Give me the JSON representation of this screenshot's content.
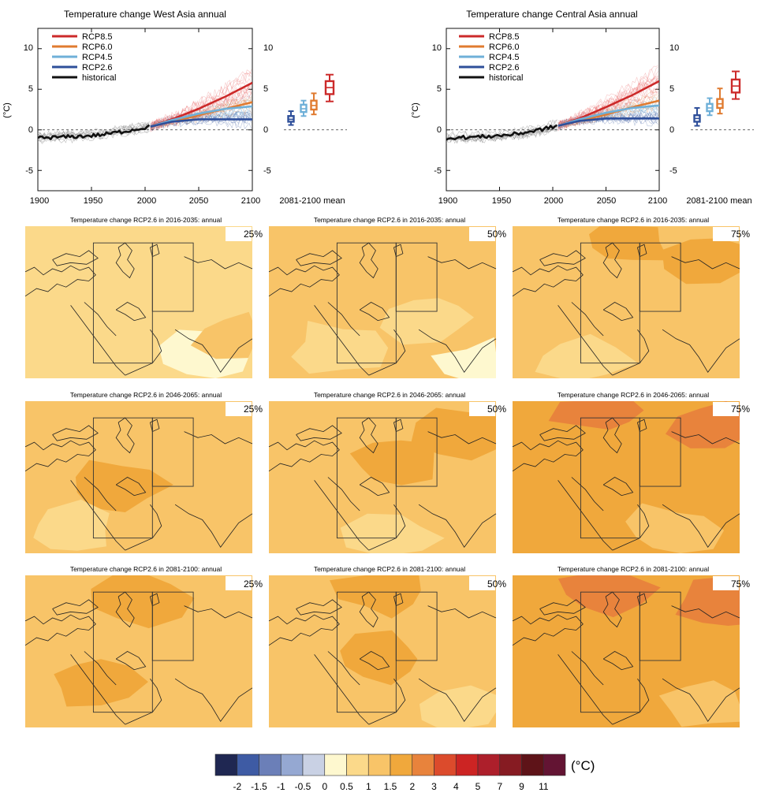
{
  "colors": {
    "rcp85": "#cc2a2a",
    "rcp60": "#e07b30",
    "rcp45": "#6fb0d8",
    "rcp26": "#2e4f9a",
    "historical": "#111111",
    "land": "#fbd98a"
  },
  "timeseries": [
    {
      "title": "Temperature change West Asia annual",
      "ylabel": "(°C)",
      "mean_label": "2081-2100 mean",
      "legend": [
        "RCP8.5",
        "RCP6.0",
        "RCP4.5",
        "RCP2.6",
        "historical"
      ],
      "x_ticks": [
        "1900",
        "1950",
        "2000",
        "2050",
        "2100"
      ],
      "y_ticks_left": [
        "10",
        "5",
        "0",
        "-5"
      ],
      "y_ticks_right": [
        "10",
        "5",
        "0",
        "-5"
      ]
    },
    {
      "title": "Temperature change Central Asia annual",
      "ylabel": "(°C)",
      "mean_label": "2081-2100 mean",
      "legend": [
        "RCP8.5",
        "RCP6.0",
        "RCP4.5",
        "RCP2.6",
        "historical"
      ],
      "x_ticks": [
        "1900",
        "1950",
        "2000",
        "2050",
        "2100"
      ],
      "y_ticks_left": [
        "10",
        "5",
        "0",
        "-5"
      ],
      "y_ticks_right": [
        "10",
        "5",
        "0",
        "-5"
      ]
    }
  ],
  "chart_data": [
    {
      "type": "line",
      "title": "Temperature change West Asia annual",
      "ylabel": "(°C)",
      "xlim": [
        1900,
        2100
      ],
      "ylim": [
        -7.5,
        12.5
      ],
      "series": [
        {
          "name": "historical",
          "x": [
            1900,
            1920,
            1940,
            1960,
            1980,
            2005
          ],
          "y": [
            -1.0,
            -0.9,
            -0.8,
            -0.6,
            -0.2,
            0.4
          ]
        },
        {
          "name": "RCP8.5",
          "x": [
            2005,
            2025,
            2050,
            2075,
            2100
          ],
          "y": [
            0.4,
            1.3,
            2.6,
            4.1,
            5.8
          ]
        },
        {
          "name": "RCP6.0",
          "x": [
            2005,
            2025,
            2050,
            2075,
            2100
          ],
          "y": [
            0.4,
            1.0,
            1.8,
            2.6,
            3.4
          ]
        },
        {
          "name": "RCP4.5",
          "x": [
            2005,
            2025,
            2050,
            2075,
            2100
          ],
          "y": [
            0.4,
            1.2,
            2.0,
            2.6,
            2.9
          ]
        },
        {
          "name": "RCP2.6",
          "x": [
            2005,
            2025,
            2050,
            2075,
            2100
          ],
          "y": [
            0.4,
            1.0,
            1.3,
            1.3,
            1.3
          ]
        }
      ],
      "mean_boxes": [
        {
          "name": "RCP2.6",
          "min": 0.6,
          "q1": 1.0,
          "median": 1.3,
          "q3": 1.7,
          "max": 2.3
        },
        {
          "name": "RCP4.5",
          "min": 1.7,
          "q1": 2.2,
          "median": 2.6,
          "q3": 3.1,
          "max": 3.6
        },
        {
          "name": "RCP6.0",
          "min": 1.9,
          "q1": 2.5,
          "median": 3.0,
          "q3": 3.6,
          "max": 4.5
        },
        {
          "name": "RCP8.5",
          "min": 3.5,
          "q1": 4.4,
          "median": 5.2,
          "q3": 6.0,
          "max": 6.8
        }
      ]
    },
    {
      "type": "line",
      "title": "Temperature change Central Asia annual",
      "ylabel": "(°C)",
      "xlim": [
        1900,
        2100
      ],
      "ylim": [
        -7.5,
        12.5
      ],
      "series": [
        {
          "name": "historical",
          "x": [
            1900,
            1920,
            1940,
            1960,
            1980,
            2005
          ],
          "y": [
            -1.0,
            -0.9,
            -0.8,
            -0.6,
            -0.2,
            0.5
          ]
        },
        {
          "name": "RCP8.5",
          "x": [
            2005,
            2025,
            2050,
            2075,
            2100
          ],
          "y": [
            0.5,
            1.4,
            2.8,
            4.3,
            6.0
          ]
        },
        {
          "name": "RCP6.0",
          "x": [
            2005,
            2025,
            2050,
            2075,
            2100
          ],
          "y": [
            0.5,
            1.1,
            1.9,
            2.8,
            3.6
          ]
        },
        {
          "name": "RCP4.5",
          "x": [
            2005,
            2025,
            2050,
            2075,
            2100
          ],
          "y": [
            0.5,
            1.3,
            2.1,
            2.7,
            3.0
          ]
        },
        {
          "name": "RCP2.6",
          "x": [
            2005,
            2025,
            2050,
            2075,
            2100
          ],
          "y": [
            0.5,
            1.1,
            1.4,
            1.4,
            1.4
          ]
        }
      ],
      "mean_boxes": [
        {
          "name": "RCP2.6",
          "min": 0.5,
          "q1": 1.0,
          "median": 1.4,
          "q3": 1.8,
          "max": 2.7
        },
        {
          "name": "RCP4.5",
          "min": 1.8,
          "q1": 2.3,
          "median": 2.7,
          "q3": 3.2,
          "max": 3.9
        },
        {
          "name": "RCP6.0",
          "min": 2.0,
          "q1": 2.7,
          "median": 3.2,
          "q3": 3.8,
          "max": 5.1
        },
        {
          "name": "RCP8.5",
          "min": 3.8,
          "q1": 4.6,
          "median": 5.4,
          "q3": 6.2,
          "max": 7.2
        }
      ]
    }
  ],
  "maps": {
    "rows": [
      {
        "title": "Temperature change RCP2.6 in 2016-2035: annual",
        "panels": [
          {
            "percentile": "25%",
            "base_value": 0.8,
            "patches": [
              {
                "v": 0.3,
                "c": [
                  0.8,
                  0.85
                ]
              },
              {
                "v": 1.2,
                "c": [
                  0.95,
                  0.72
                ]
              }
            ]
          },
          {
            "percentile": "50%",
            "base_value": 1.2,
            "patches": [
              {
                "v": 0.8,
                "c": [
                  0.72,
                  0.6
                ]
              },
              {
                "v": 0.8,
                "c": [
                  0.3,
                  0.8
                ]
              },
              {
                "v": 0.3,
                "c": [
                  0.95,
                  0.92
                ]
              }
            ]
          },
          {
            "percentile": "75%",
            "base_value": 1.2,
            "patches": [
              {
                "v": 1.7,
                "c": [
                  0.5,
                  0.1
                ]
              },
              {
                "v": 1.7,
                "c": [
                  0.88,
                  0.22
                ]
              },
              {
                "v": 0.8,
                "c": [
                  0.3,
                  0.9
                ]
              }
            ]
          }
        ]
      },
      {
        "title": "Temperature change RCP2.6 in 2046-2065: annual",
        "panels": [
          {
            "percentile": "25%",
            "base_value": 1.2,
            "patches": [
              {
                "v": 1.7,
                "c": [
                  0.4,
                  0.55
                ]
              },
              {
                "v": 0.8,
                "c": [
                  0.2,
                  0.85
                ]
              }
            ]
          },
          {
            "percentile": "50%",
            "base_value": 1.2,
            "patches": [
              {
                "v": 1.7,
                "c": [
                  0.55,
                  0.4
                ]
              },
              {
                "v": 1.7,
                "c": [
                  0.85,
                  0.2
                ]
              },
              {
                "v": 0.8,
                "c": [
                  0.55,
                  0.9
                ]
              }
            ]
          },
          {
            "percentile": "75%",
            "base_value": 1.7,
            "patches": [
              {
                "v": 2.5,
                "c": [
                  0.4,
                  0.06
                ]
              },
              {
                "v": 2.5,
                "c": [
                  0.9,
                  0.15
                ]
              },
              {
                "v": 1.2,
                "c": [
                  0.7,
                  0.85
                ]
              }
            ]
          }
        ]
      },
      {
        "title": "Temperature change RCP2.6 in 2081-2100: annual",
        "panels": [
          {
            "percentile": "25%",
            "base_value": 1.2,
            "patches": [
              {
                "v": 1.7,
                "c": [
                  0.5,
                  0.15
                ]
              },
              {
                "v": 1.7,
                "c": [
                  0.3,
                  0.7
                ]
              }
            ]
          },
          {
            "percentile": "50%",
            "base_value": 1.2,
            "patches": [
              {
                "v": 1.7,
                "c": [
                  0.5,
                  0.1
                ]
              },
              {
                "v": 1.7,
                "c": [
                  0.5,
                  0.55
                ]
              },
              {
                "v": 0.8,
                "c": [
                  0.85,
                  0.9
                ]
              }
            ]
          },
          {
            "percentile": "75%",
            "base_value": 1.7,
            "patches": [
              {
                "v": 2.5,
                "c": [
                  0.4,
                  0.08
                ]
              },
              {
                "v": 2.5,
                "c": [
                  0.92,
                  0.2
                ]
              },
              {
                "v": 1.2,
                "c": [
                  0.85,
                  0.85
                ]
              }
            ]
          }
        ]
      }
    ]
  },
  "colorbar": {
    "unit": "(°C)",
    "swatches": [
      "#1f2752",
      "#3e5ba4",
      "#6b7fb8",
      "#95a8d2",
      "#c9d1e4",
      "#fef8cf",
      "#fbd98a",
      "#f8c468",
      "#f0a83c",
      "#e8833c",
      "#dc4b2c",
      "#cc2423",
      "#ad1f2b",
      "#861b22",
      "#5e1318",
      "#631433"
    ],
    "labels": [
      "-2",
      "-1.5",
      "-1",
      "-0.5",
      "0",
      "0.5",
      "1",
      "1.5",
      "2",
      "3",
      "4",
      "5",
      "7",
      "9",
      "11"
    ]
  }
}
